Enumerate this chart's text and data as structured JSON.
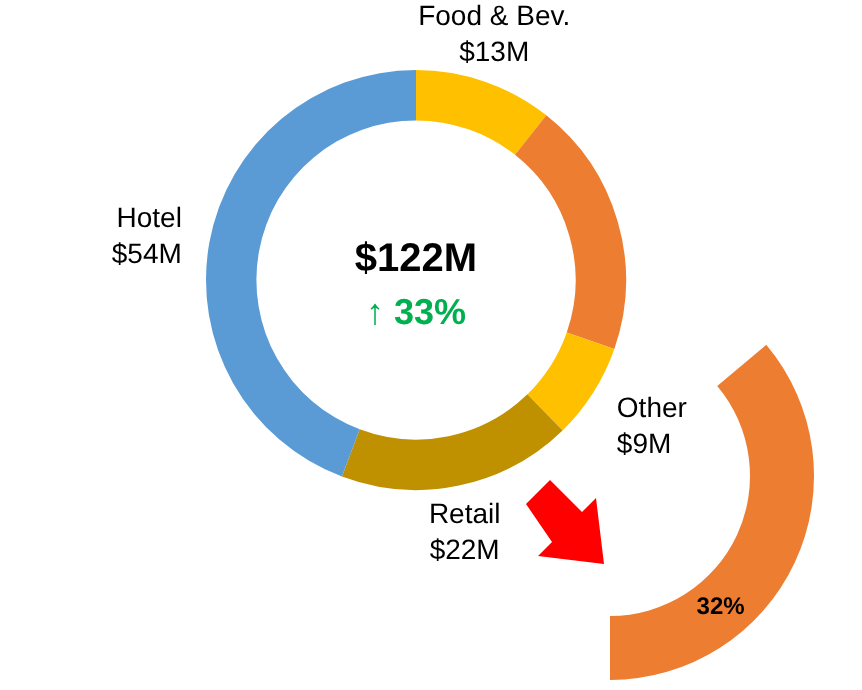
{
  "chart_data": {
    "type": "donut",
    "categories": [
      "Food & Bev.",
      null,
      "Other",
      "Retail",
      "Hotel"
    ],
    "values": [
      13,
      24,
      9,
      22,
      54
    ],
    "value_labels": [
      "$13M",
      null,
      "$9M",
      "$22M",
      "$54M"
    ],
    "colors": [
      "#ffc000",
      "#ed7d31",
      "#ffc000",
      "#bf9000",
      "#5b9bd5"
    ],
    "annotations": [
      "$122M",
      "↑ 33%",
      "32%"
    ],
    "legend": false
  }
}
